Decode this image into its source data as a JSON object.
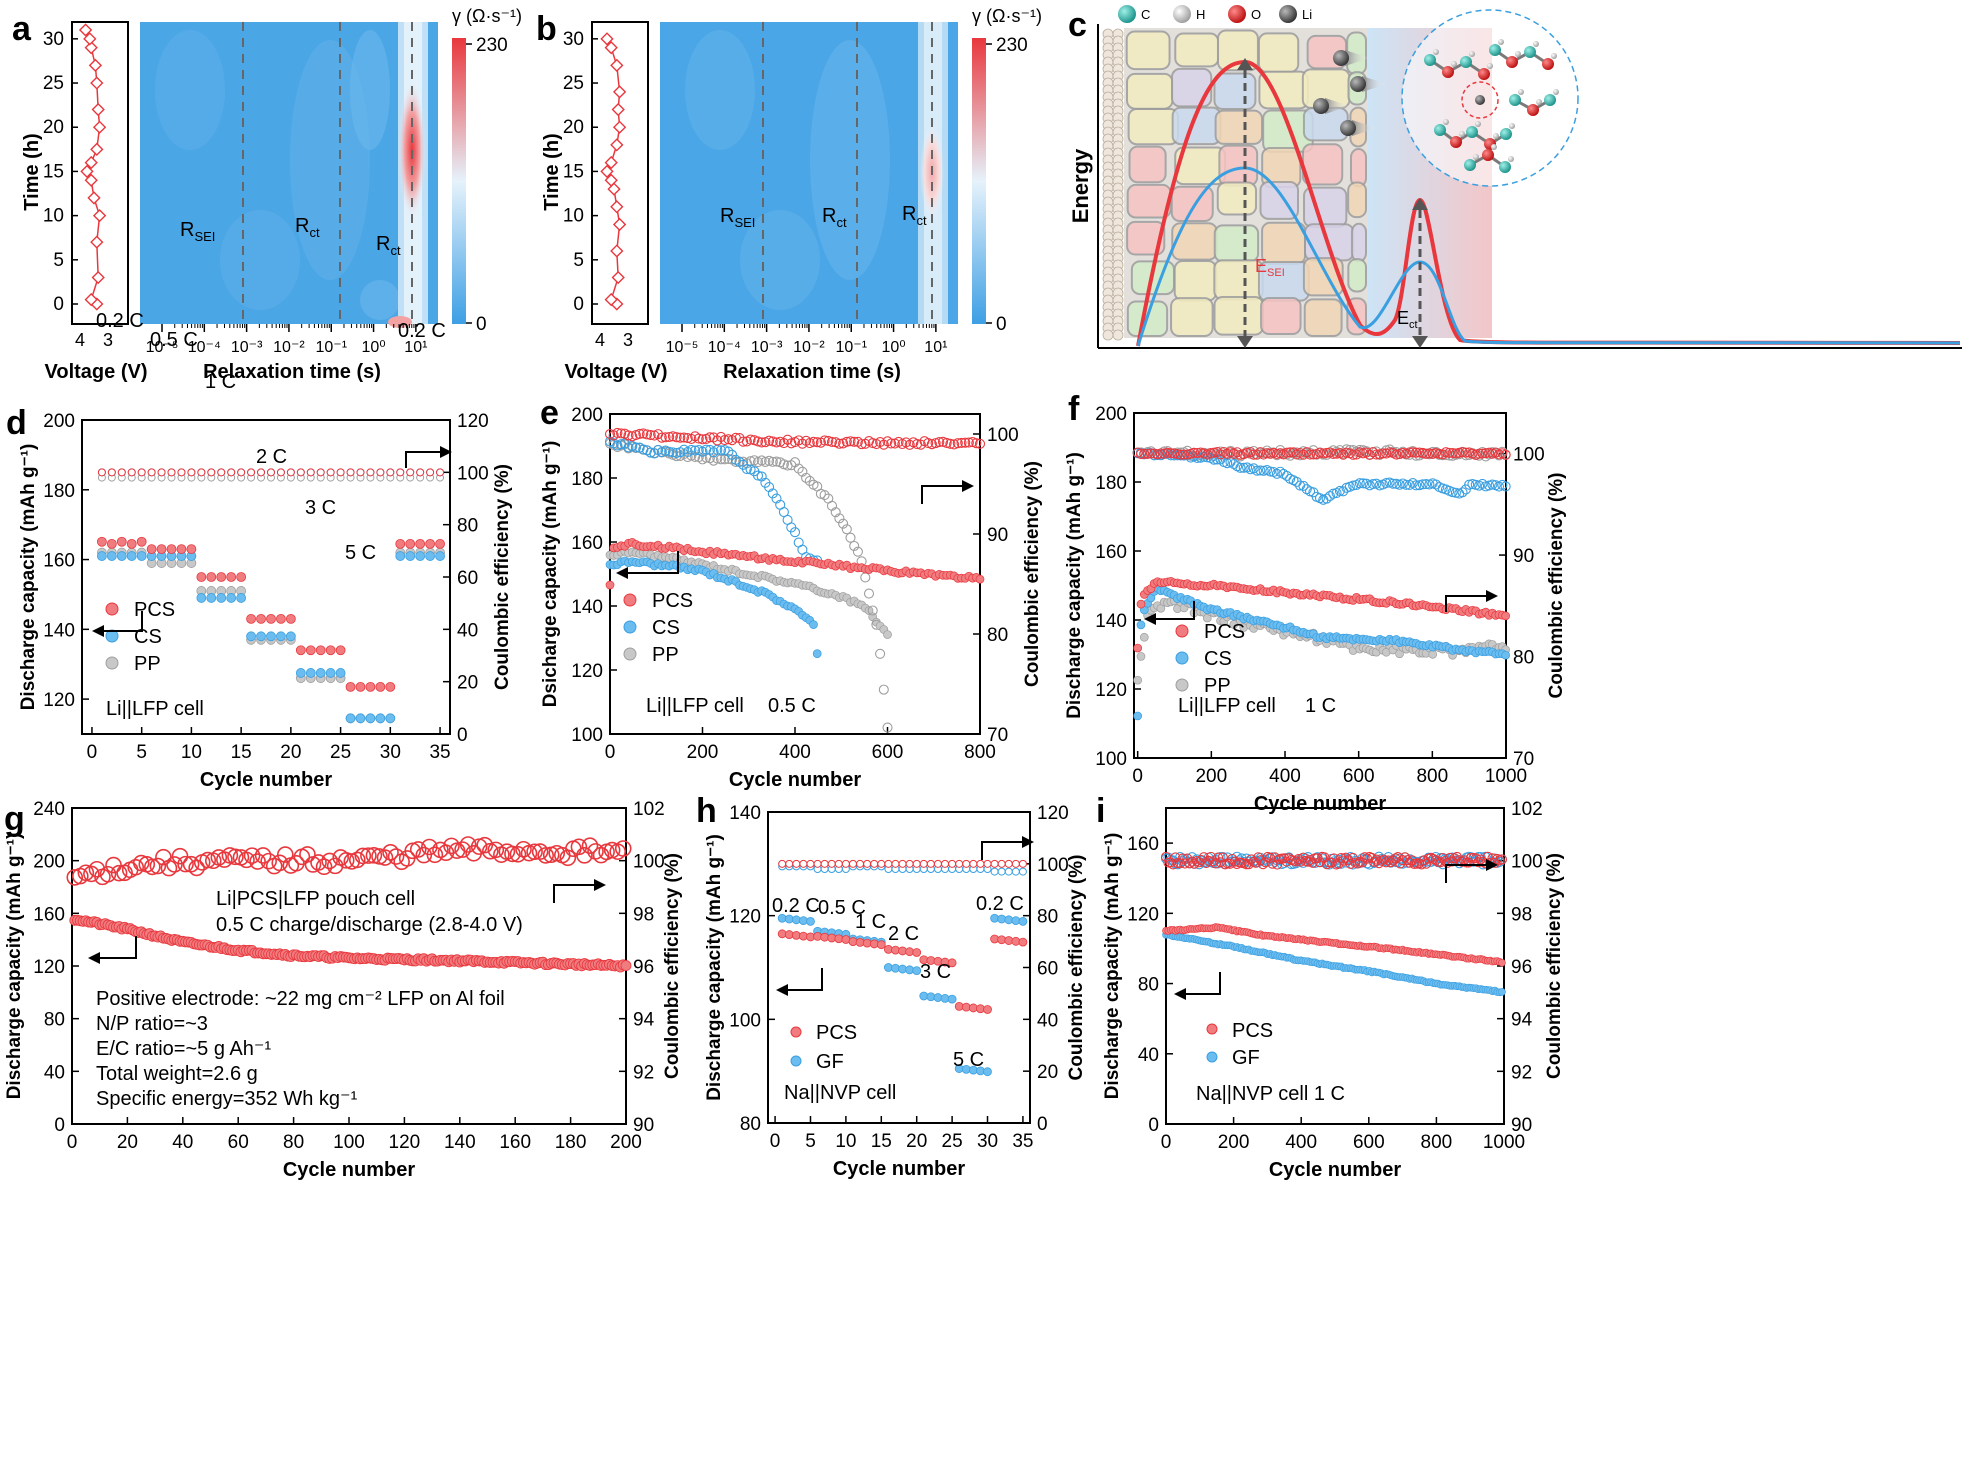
{
  "colors": {
    "pcs": "#e8383d",
    "pcs_fill": "#f07c80",
    "cs": "#3a9fe0",
    "cs_fill": "#6bbcef",
    "pp": "#b4b4b4",
    "gf": "#3a9fe0",
    "heat_low": "#3d9fe4",
    "heat_mid": "#dceefa",
    "heat_high": "#e8383d",
    "axis": "#000000"
  },
  "panels": {
    "a": {
      "letter": "a",
      "voltage_axis_label": "Voltage (V)",
      "time_axis_label": "Time (h)",
      "relax_axis_label": "Relaxation time (s)",
      "colorbar_title": "γ (Ω·s⁻¹)",
      "colorbar_max": "230",
      "colorbar_min": "0",
      "peaks": [
        "R",
        "R",
        "R"
      ],
      "peak_subs": [
        "SEI",
        "ct",
        "ct"
      ]
    },
    "b": {
      "letter": "b",
      "voltage_axis_label": "Voltage (V)",
      "time_axis_label": "Time (h)",
      "relax_axis_label": "Relaxation time (s)",
      "colorbar_title": "γ (Ω·s⁻¹)",
      "colorbar_max": "230",
      "colorbar_min": "0",
      "peaks": [
        "R",
        "R",
        "R"
      ],
      "peak_subs": [
        "SEI",
        "ct",
        "ct"
      ]
    },
    "c": {
      "letter": "c",
      "legend": [
        "C",
        "H",
        "O",
        "Li"
      ],
      "y_label": "Energy",
      "barrier_labels": [
        "E",
        "E"
      ],
      "barrier_subs": [
        "SEI",
        "ct"
      ]
    },
    "d": {
      "letter": "d",
      "cell_label": "Li||LFP cell",
      "rate_labels": [
        "0.2 C",
        "0.5 C",
        "1 C",
        "2 C",
        "3 C",
        "5 C",
        "0.2 C"
      ]
    },
    "e": {
      "letter": "e",
      "cell_label": "Li||LFP cell",
      "rate_label": "0.5 C"
    },
    "f": {
      "letter": "f",
      "cell_label": "Li||LFP cell",
      "rate_label": "1 C"
    },
    "g": {
      "letter": "g",
      "title_lines": [
        "Li|PCS|LFP pouch cell",
        "0.5 C charge/discharge (2.8-4.0 V)"
      ],
      "spec_lines": [
        "Positive electrode: ~22 mg cm⁻² LFP on Al foil",
        "N/P ratio=~3",
        "E/C ratio=~5 g Ah⁻¹",
        "Total weight=2.6 g",
        "Specific energy=352 Wh kg⁻¹"
      ]
    },
    "h": {
      "letter": "h",
      "cell_label": "Na||NVP cell",
      "rate_labels": [
        "0.2 C",
        "0.5 C",
        "1 C",
        "2 C",
        "3 C",
        "5 C",
        "0.2 C"
      ]
    },
    "i": {
      "letter": "i",
      "cell_label": "Na||NVP cell  1 C"
    }
  },
  "chart_data": [
    {
      "id": "a",
      "type": "heatmap",
      "xlabel": "Relaxation time (s)",
      "ylabel": "Time (h)",
      "x_scale": "log",
      "x_ticks": [
        "10⁻⁵",
        "10⁻⁴",
        "10⁻³",
        "10⁻²",
        "10⁻¹",
        "10⁰",
        "10¹"
      ],
      "y_ticks": [
        0,
        5,
        10,
        15,
        20,
        25,
        30
      ],
      "colorbar_range": [
        0,
        230
      ],
      "peak_tau": [
        0.0009,
        0.14,
        7
      ],
      "max_region": {
        "tau": 7,
        "time_range": [
          12,
          22
        ],
        "gamma": 230
      },
      "voltage_profile": {
        "xlabel": "Voltage (V)",
        "x_ticks": [
          4,
          3
        ],
        "points": [
          [
            3.4,
            0
          ],
          [
            3.6,
            0.5
          ],
          [
            3.35,
            3
          ],
          [
            3.4,
            7
          ],
          [
            3.3,
            10
          ],
          [
            3.5,
            12
          ],
          [
            3.6,
            14
          ],
          [
            3.75,
            15
          ],
          [
            3.6,
            16
          ],
          [
            3.4,
            17.5
          ],
          [
            3.3,
            20
          ],
          [
            3.35,
            22
          ],
          [
            3.4,
            25
          ],
          [
            3.45,
            27
          ],
          [
            3.6,
            29
          ],
          [
            3.65,
            30
          ],
          [
            3.8,
            31
          ]
        ]
      }
    },
    {
      "id": "b",
      "type": "heatmap",
      "xlabel": "Relaxation time (s)",
      "ylabel": "Time (h)",
      "x_scale": "log",
      "x_ticks": [
        "10⁻⁵",
        "10⁻⁴",
        "10⁻³",
        "10⁻²",
        "10⁻¹",
        "10⁰",
        "10¹"
      ],
      "y_ticks": [
        0,
        5,
        10,
        15,
        20,
        25,
        30
      ],
      "colorbar_range": [
        0,
        230
      ],
      "peak_tau": [
        0.0008,
        0.13,
        7
      ],
      "max_region": {
        "tau": 7,
        "time_range": [
          13,
          19
        ],
        "gamma": 130
      },
      "voltage_profile": {
        "xlabel": "Voltage (V)",
        "x_ticks": [
          4,
          3
        ],
        "points": [
          [
            3.4,
            0
          ],
          [
            3.6,
            0.5
          ],
          [
            3.35,
            3
          ],
          [
            3.4,
            6
          ],
          [
            3.3,
            9
          ],
          [
            3.4,
            11
          ],
          [
            3.5,
            13
          ],
          [
            3.6,
            14
          ],
          [
            3.75,
            15
          ],
          [
            3.6,
            16
          ],
          [
            3.4,
            18
          ],
          [
            3.3,
            20
          ],
          [
            3.35,
            22
          ],
          [
            3.3,
            24
          ],
          [
            3.4,
            27
          ],
          [
            3.6,
            29
          ],
          [
            3.75,
            30
          ]
        ]
      }
    },
    {
      "id": "d",
      "type": "scatter",
      "xlabel": "Cycle number",
      "ylabel": "Discharge capacity (mAh g⁻¹)",
      "y2label": "Coulombic efficiency (%)",
      "xlim": [
        -1,
        36
      ],
      "ylim": [
        110,
        200
      ],
      "y2lim": [
        0,
        120
      ],
      "x_ticks": [
        0,
        5,
        10,
        15,
        20,
        25,
        30,
        35
      ],
      "y_ticks": [
        120,
        140,
        160,
        180,
        200
      ],
      "y2_ticks": [
        0,
        20,
        40,
        60,
        80,
        100,
        120
      ],
      "legend": [
        "PCS",
        "CS",
        "PP"
      ],
      "rate_steps": [
        [
          1,
          5,
          "0.2 C"
        ],
        [
          6,
          10,
          "0.5 C"
        ],
        [
          11,
          15,
          "1 C"
        ],
        [
          16,
          20,
          "2 C"
        ],
        [
          21,
          25,
          "3 C"
        ],
        [
          26,
          30,
          "5 C"
        ],
        [
          31,
          35,
          "0.2 C"
        ]
      ],
      "capacity": {
        "PCS": [
          164.5,
          163,
          155,
          143,
          134,
          123.5,
          164.5
        ],
        "CS": [
          161,
          161,
          149,
          138,
          127.5,
          114.5,
          161
        ],
        "PP": [
          162,
          159,
          151,
          137,
          126,
          114.5,
          162
        ]
      },
      "ce": {
        "PCS": [
          100,
          100,
          100,
          100,
          100,
          100,
          100
        ],
        "CS": [
          100,
          100,
          100,
          100,
          100,
          100,
          100
        ],
        "PP": [
          99,
          99,
          99,
          99,
          99,
          99,
          99
        ]
      }
    },
    {
      "id": "e",
      "type": "scatter",
      "xlabel": "Cycle number",
      "ylabel": "Dsicharge capacity (mAh g⁻¹)",
      "y2label": "Coulombic efficiency (%)",
      "xlim": [
        0,
        800
      ],
      "ylim": [
        100,
        200
      ],
      "y2lim": [
        70,
        102
      ],
      "x_ticks": [
        0,
        200,
        400,
        600,
        800
      ],
      "y_ticks": [
        100,
        120,
        140,
        160,
        180,
        200
      ],
      "y2_ticks": [
        70,
        80,
        90,
        100
      ],
      "legend": [
        "PCS",
        "CS",
        "PP"
      ],
      "capacity": {
        "PCS": [
          [
            0,
            146
          ],
          [
            5,
            158
          ],
          [
            50,
            159.5
          ],
          [
            200,
            157
          ],
          [
            400,
            154
          ],
          [
            600,
            151
          ],
          [
            800,
            148.5
          ]
        ],
        "CS": [
          [
            0,
            153
          ],
          [
            50,
            154
          ],
          [
            200,
            151
          ],
          [
            300,
            146
          ],
          [
            350,
            143
          ],
          [
            400,
            139
          ],
          [
            440,
            134
          ],
          [
            455,
            118
          ]
        ],
        "PP": [
          [
            0,
            156
          ],
          [
            50,
            157
          ],
          [
            200,
            153
          ],
          [
            400,
            147
          ],
          [
            500,
            143
          ],
          [
            560,
            139
          ],
          [
            580,
            134
          ],
          [
            600,
            131
          ]
        ]
      },
      "ce": {
        "PCS": [
          [
            0,
            100
          ],
          [
            200,
            99.6
          ],
          [
            400,
            99.2
          ],
          [
            600,
            99.1
          ],
          [
            800,
            99.1
          ]
        ],
        "CS": [
          [
            0,
            99.2
          ],
          [
            100,
            98.2
          ],
          [
            250,
            98.3
          ],
          [
            330,
            95.5
          ],
          [
            380,
            92
          ],
          [
            420,
            88
          ],
          [
            455,
            87
          ]
        ],
        "PP": [
          [
            0,
            99
          ],
          [
            200,
            97.5
          ],
          [
            400,
            97
          ],
          [
            480,
            93
          ],
          [
            540,
            88
          ],
          [
            580,
            80
          ],
          [
            600,
            70.5
          ]
        ]
      }
    },
    {
      "id": "f",
      "type": "scatter",
      "xlabel": "Cycle number",
      "ylabel": "Discharge capacity (mAh g⁻¹)",
      "y2label": "Coulombic efficiency (%)",
      "xlim": [
        -10,
        1000
      ],
      "ylim": [
        100,
        200
      ],
      "y2lim": [
        70,
        104
      ],
      "x_ticks": [
        0,
        200,
        400,
        600,
        800,
        1000
      ],
      "y_ticks": [
        100,
        120,
        140,
        160,
        180,
        200
      ],
      "y2_ticks": [
        70,
        80,
        90,
        100
      ],
      "legend": [
        "PCS",
        "CS",
        "PP"
      ],
      "capacity": {
        "PCS": [
          [
            0,
            132
          ],
          [
            10,
            146
          ],
          [
            50,
            151
          ],
          [
            200,
            150
          ],
          [
            400,
            148
          ],
          [
            600,
            146
          ],
          [
            800,
            144
          ],
          [
            1000,
            141
          ]
        ],
        "CS": [
          [
            0,
            112
          ],
          [
            10,
            141
          ],
          [
            50,
            149
          ],
          [
            200,
            143
          ],
          [
            400,
            138
          ],
          [
            500,
            135
          ],
          [
            700,
            134
          ],
          [
            900,
            131
          ],
          [
            1000,
            130
          ]
        ],
        "PP": [
          [
            0,
            122
          ],
          [
            30,
            142
          ],
          [
            100,
            145
          ],
          [
            250,
            140
          ],
          [
            450,
            136
          ],
          [
            600,
            132
          ],
          [
            800,
            131
          ],
          [
            1000,
            132
          ]
        ]
      },
      "ce": {
        "PCS": [
          [
            0,
            100
          ],
          [
            200,
            100
          ],
          [
            500,
            100
          ],
          [
            800,
            100
          ],
          [
            1000,
            100
          ]
        ],
        "CS": [
          [
            0,
            100
          ],
          [
            200,
            99.6
          ],
          [
            300,
            98.5
          ],
          [
            400,
            98
          ],
          [
            500,
            95.5
          ],
          [
            600,
            97
          ],
          [
            800,
            97
          ],
          [
            880,
            96
          ],
          [
            900,
            97
          ],
          [
            1000,
            96.8
          ]
        ],
        "PP": [
          [
            0,
            100
          ],
          [
            300,
            100
          ],
          [
            600,
            100.2
          ],
          [
            800,
            100
          ],
          [
            1000,
            100
          ]
        ]
      }
    },
    {
      "id": "g",
      "type": "scatter",
      "xlabel": "Cycle number",
      "ylabel": "Discharge capacity (mAh g⁻¹)",
      "y2label": "Coulombic efficiency (%)",
      "xlim": [
        0,
        200
      ],
      "ylim": [
        0,
        240
      ],
      "y2lim": [
        90,
        102
      ],
      "x_ticks": [
        0,
        20,
        40,
        60,
        80,
        100,
        120,
        140,
        160,
        180,
        200
      ],
      "y_ticks": [
        0,
        40,
        80,
        120,
        160,
        200,
        240
      ],
      "y2_ticks": [
        90,
        92,
        94,
        96,
        98,
        100,
        102
      ],
      "capacity": [
        [
          0,
          156
        ],
        [
          20,
          148
        ],
        [
          40,
          138
        ],
        [
          60,
          132
        ],
        [
          80,
          128
        ],
        [
          100,
          126
        ],
        [
          140,
          124
        ],
        [
          200,
          120
        ]
      ],
      "ce": [
        [
          0,
          99.3
        ],
        [
          10,
          99.6
        ],
        [
          30,
          99.9
        ],
        [
          60,
          100
        ],
        [
          100,
          100
        ],
        [
          140,
          100.4
        ],
        [
          200,
          100.3
        ]
      ]
    },
    {
      "id": "h",
      "type": "scatter",
      "xlabel": "Cycle number",
      "ylabel": "Discharge capacity (mAh g⁻¹)",
      "y2label": "Coulombic efficiency (%)",
      "xlim": [
        -1,
        36
      ],
      "ylim": [
        80,
        140
      ],
      "y2lim": [
        0,
        120
      ],
      "x_ticks": [
        0,
        5,
        10,
        15,
        20,
        25,
        30,
        35
      ],
      "y_ticks": [
        80,
        100,
        120,
        140
      ],
      "y2_ticks": [
        0,
        20,
        40,
        60,
        80,
        100,
        120
      ],
      "legend": [
        "PCS",
        "GF"
      ],
      "rate_steps": [
        [
          1,
          5,
          "0.2 C"
        ],
        [
          6,
          10,
          "0.5 C"
        ],
        [
          11,
          15,
          "1 C"
        ],
        [
          16,
          20,
          "2 C"
        ],
        [
          21,
          25,
          "3 C"
        ],
        [
          26,
          30,
          "5 C"
        ],
        [
          31,
          35,
          "0.2 C"
        ]
      ],
      "capacity": {
        "PCS": [
          116.5,
          116,
          115,
          113.5,
          111.5,
          102.5,
          115.5
        ],
        "GF": [
          119.5,
          117,
          115.5,
          110,
          104.5,
          90.5,
          119.5
        ]
      },
      "ce": {
        "PCS": [
          100,
          100,
          100,
          100,
          100,
          100,
          100
        ],
        "GF": [
          99,
          98,
          99,
          98,
          98,
          98,
          97
        ]
      }
    },
    {
      "id": "i",
      "type": "scatter",
      "xlabel": "Cycle number",
      "ylabel": "Discharge capacity (mAh g⁻¹)",
      "y2label": "Coulombic efficiency (%)",
      "xlim": [
        0,
        1000
      ],
      "ylim": [
        0,
        180
      ],
      "y2lim": [
        90,
        102
      ],
      "x_ticks": [
        0,
        200,
        400,
        600,
        800,
        1000
      ],
      "y_ticks": [
        0,
        40,
        80,
        120,
        160
      ],
      "y2_ticks": [
        90,
        92,
        94,
        96,
        98,
        100,
        102
      ],
      "legend": [
        "PCS",
        "GF"
      ],
      "capacity": {
        "PCS": [
          [
            0,
            110
          ],
          [
            150,
            112
          ],
          [
            300,
            107
          ],
          [
            500,
            103
          ],
          [
            700,
            99
          ],
          [
            1000,
            92
          ]
        ],
        "GF": [
          [
            0,
            108
          ],
          [
            200,
            101
          ],
          [
            400,
            93
          ],
          [
            600,
            87
          ],
          [
            800,
            80
          ],
          [
            1000,
            75
          ]
        ]
      },
      "ce": {
        "PCS": [
          [
            0,
            100
          ],
          [
            500,
            100
          ],
          [
            1000,
            100
          ]
        ],
        "GF": [
          [
            0,
            100
          ],
          [
            500,
            100
          ],
          [
            1000,
            100
          ]
        ]
      }
    }
  ]
}
